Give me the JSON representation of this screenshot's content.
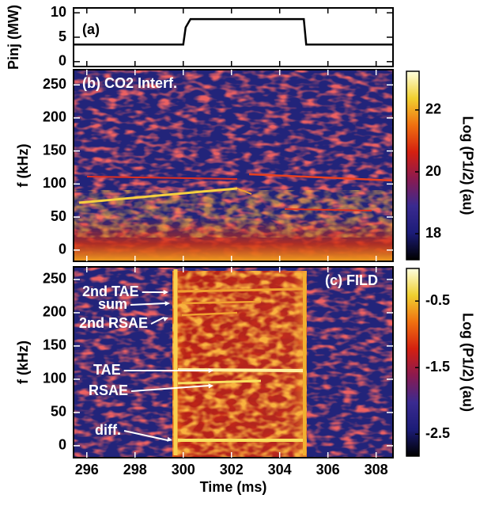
{
  "chart_data": [
    {
      "type": "line",
      "panel_label": "(a)",
      "ylabel": "Pinj (MW)",
      "x": [
        295.45,
        300,
        300.1,
        300.3,
        305,
        305.1,
        308.7
      ],
      "series": [
        {
          "color": "#000000",
          "values": [
            3.5,
            3.5,
            7,
            8.7,
            8.7,
            3.5,
            3.5
          ]
        }
      ],
      "xlim": [
        295.45,
        308.7
      ],
      "ylim": [
        -1,
        11
      ],
      "yticks": [
        0,
        5,
        10
      ]
    },
    {
      "type": "spectrogram",
      "panel_label": "(b) CO2 Interf.",
      "ylabel": "f (kHz)",
      "xlim": [
        295.45,
        308.7
      ],
      "ylim": [
        -17,
        273
      ],
      "yticks": [
        0,
        50,
        100,
        150,
        200,
        250
      ],
      "colorbar": {
        "label": "Log (P1/2) (au)",
        "lim": [
          17.16,
          23.25
        ],
        "ticks": [
          18,
          20,
          22
        ],
        "colormap": [
          "#000000",
          "#1c1c78",
          "#3a2a90",
          "#8a1a50",
          "#d42010",
          "#f07010",
          "#f0d030",
          "#ffffe0"
        ]
      }
    },
    {
      "type": "spectrogram",
      "panel_label": "(c) FILD",
      "ylabel": "f (kHz)",
      "xlabel": "Time (ms)",
      "xlim": [
        295.45,
        308.7
      ],
      "xticks": [
        296,
        298,
        300,
        302,
        304,
        306,
        308
      ],
      "ylim": [
        -18,
        269
      ],
      "yticks": [
        0,
        50,
        100,
        150,
        200,
        250
      ],
      "annotations": [
        "2nd TAE",
        "sum",
        "2nd RSAE",
        "TAE",
        "RSAE",
        "diff."
      ],
      "colorbar": {
        "label": "Log (P1/2) (au)",
        "lim": [
          -2.83,
          -0.01
        ],
        "ticks": [
          -2.5,
          -1.5,
          -0.5
        ],
        "colormap": [
          "#000000",
          "#1c1c78",
          "#3a2a90",
          "#8a1a50",
          "#d42010",
          "#f07010",
          "#f0d030",
          "#ffffe0"
        ]
      }
    }
  ]
}
